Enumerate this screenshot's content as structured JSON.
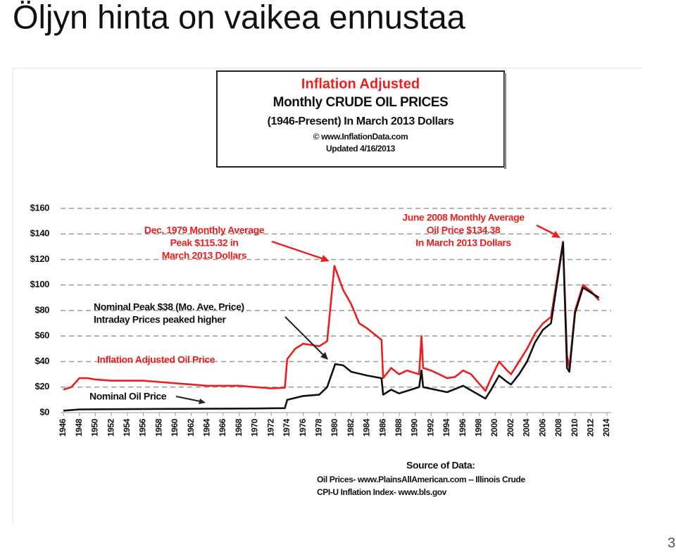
{
  "slide_title": "Öljyn hinta on vaikea ennustaa",
  "page_number": "3",
  "chart_data": {
    "type": "line",
    "title": "Inflation Adjusted",
    "subtitle_lines": [
      "Monthly CRUDE OIL PRICES",
      "(1946-Present) In March 2013 Dollars",
      "© www.InflationData.com",
      "Updated 4/16/2013"
    ],
    "series": [
      {
        "name": "Inflation Adjusted Oil Price",
        "color": "#e8201f",
        "x": [
          1946,
          1947,
          1948,
          1949,
          1950,
          1952,
          1954,
          1956,
          1958,
          1960,
          1962,
          1964,
          1966,
          1968,
          1970,
          1972,
          1973.7,
          1974,
          1975,
          1976,
          1978,
          1979,
          1979.9,
          1981,
          1982,
          1983,
          1984,
          1985.8,
          1986,
          1987,
          1988,
          1989,
          1990.5,
          1990.8,
          1991,
          1992,
          1993,
          1994,
          1995,
          1996,
          1997,
          1998.8,
          1999.5,
          2000.5,
          2001.5,
          2002,
          2003,
          2004,
          2005,
          2006,
          2007,
          2008.5,
          2009,
          2009.3,
          2010,
          2011,
          2012,
          2013
        ],
        "values": [
          18,
          20,
          27,
          27,
          26,
          25,
          25,
          25,
          24,
          23,
          22,
          21,
          21,
          21,
          20,
          19,
          19.5,
          42,
          50,
          54,
          52,
          56,
          115,
          96,
          85,
          70,
          66,
          57,
          27,
          35,
          30,
          33,
          30,
          60,
          35,
          33,
          30,
          27,
          28,
          33,
          30,
          17,
          27,
          40,
          33,
          30,
          40,
          50,
          62,
          70,
          75,
          134,
          45,
          35,
          80,
          100,
          95,
          88
        ]
      },
      {
        "name": "Nominal Oil Price",
        "color": "#111111",
        "x": [
          1946,
          1948,
          1950,
          1956,
          1960,
          1970,
          1973.7,
          1974,
          1976,
          1978,
          1979,
          1980,
          1981,
          1982,
          1984,
          1985.8,
          1986,
          1987,
          1988,
          1990.5,
          1990.8,
          1991,
          1994,
          1996,
          1998.8,
          1999.5,
          2000.5,
          2001.5,
          2002,
          2003,
          2004,
          2005,
          2006,
          2007,
          2008.5,
          2009,
          2009.3,
          2010,
          2011,
          2012,
          2013
        ],
        "values": [
          1.5,
          2.5,
          2.6,
          2.8,
          2.9,
          3.2,
          3.5,
          10,
          13,
          14,
          20,
          38,
          37,
          32,
          29,
          27,
          14,
          18,
          15,
          20,
          33,
          20,
          16,
          21,
          11,
          18,
          29,
          24,
          22,
          30,
          40,
          55,
          65,
          70,
          133,
          35,
          32,
          78,
          98,
          94,
          90
        ]
      }
    ],
    "xlim": [
      1946,
      2014
    ],
    "xticks": [
      1946,
      1948,
      1950,
      1952,
      1954,
      1956,
      1958,
      1960,
      1962,
      1964,
      1966,
      1968,
      1970,
      1972,
      1974,
      1976,
      1978,
      1980,
      1982,
      1984,
      1986,
      1988,
      1990,
      1992,
      1994,
      1996,
      1998,
      2000,
      2002,
      2004,
      2006,
      2008,
      2010,
      2012,
      2014
    ],
    "ylim": [
      0,
      160
    ],
    "yticks": [
      {
        "value": 0,
        "label": "$0"
      },
      {
        "value": 20,
        "label": "$20"
      },
      {
        "value": 40,
        "label": "$40"
      },
      {
        "value": 60,
        "label": "$60"
      },
      {
        "value": 80,
        "label": "$80"
      },
      {
        "value": 100,
        "label": "$100"
      },
      {
        "value": 120,
        "label": "$120"
      },
      {
        "value": 140,
        "label": "$140"
      },
      {
        "value": 160,
        "label": "$160"
      }
    ],
    "grid": true,
    "annotations": [
      {
        "lines": [
          "Dec. 1979 Monthly Average",
          "Peak $115.32 in",
          "March 2013 Dollars"
        ],
        "color": "#e8201f"
      },
      {
        "lines": [
          "June 2008 Monthly Average",
          "Oil  Price $134.38",
          "In March 2013 Dollars"
        ],
        "color": "#e8201f"
      },
      {
        "lines": [
          "Nominal Peak $38 (Mo. Ave. Price)",
          "Intraday Prices peaked higher"
        ],
        "color": "#111111"
      }
    ],
    "source": [
      "Source of Data:",
      "Oil Prices- www.PlainsAllAmerican.com -- Illinois Crude",
      "CPI-U Inflation Index-   www.bls.gov"
    ]
  }
}
